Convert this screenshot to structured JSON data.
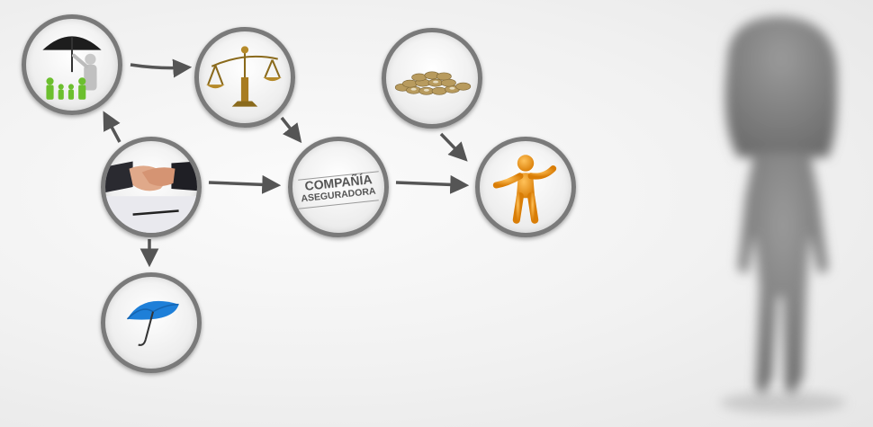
{
  "company_node": {
    "line1": "COMPAÑÍA",
    "line2": "ASEGURADORA"
  },
  "nodes": [
    {
      "id": "family-protection",
      "icon": "umbrella-family-icon"
    },
    {
      "id": "justice",
      "icon": "scales-icon"
    },
    {
      "id": "coins",
      "icon": "coins-icon"
    },
    {
      "id": "handshake",
      "icon": "handshake-contract-icon"
    },
    {
      "id": "insurance-company",
      "icon": "company-label"
    },
    {
      "id": "beneficiary",
      "icon": "orange-figure-icon"
    },
    {
      "id": "umbrella",
      "icon": "blue-umbrella-icon"
    }
  ],
  "edges": [
    {
      "from": "family-protection",
      "to": "justice"
    },
    {
      "from": "handshake",
      "to": "family-protection"
    },
    {
      "from": "justice",
      "to": "insurance-company"
    },
    {
      "from": "handshake",
      "to": "insurance-company"
    },
    {
      "from": "insurance-company",
      "to": "beneficiary"
    },
    {
      "from": "coins",
      "to": "beneficiary"
    },
    {
      "from": "handshake",
      "to": "umbrella"
    }
  ],
  "colors": {
    "ring": "#7a7a7a",
    "arrow": "#555555",
    "family_green": "#6cbf2e",
    "umbrella_blue": "#1e7fd8",
    "figure_orange": "#f39a12",
    "silhouette": "#8a8a8a"
  }
}
